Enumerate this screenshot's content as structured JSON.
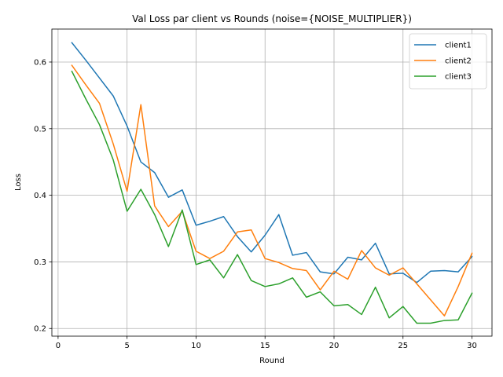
{
  "chart_data": {
    "type": "line",
    "title": "Val Loss par client vs Rounds (noise={NOISE_MULTIPLIER})",
    "xlabel": "Round",
    "ylabel": "Loss",
    "xlim": [
      -0.45,
      31.45
    ],
    "ylim": [
      0.1885,
      0.6495
    ],
    "xticks": [
      0,
      5,
      10,
      15,
      20,
      25,
      30
    ],
    "yticks": [
      0.2,
      0.3,
      0.4,
      0.5,
      0.6
    ],
    "ytick_labels": [
      "0.2",
      "0.3",
      "0.4",
      "0.5",
      "0.6"
    ],
    "grid": true,
    "legend_position": "top-right",
    "x": [
      1,
      2,
      3,
      4,
      5,
      6,
      7,
      8,
      9,
      10,
      11,
      12,
      13,
      14,
      15,
      16,
      17,
      18,
      19,
      20,
      21,
      22,
      23,
      24,
      25,
      26,
      27,
      28,
      29,
      30
    ],
    "series": [
      {
        "name": "client1",
        "color": "#1f77b4",
        "values": [
          0.629,
          0.603,
          0.576,
          0.549,
          0.504,
          0.45,
          0.434,
          0.397,
          0.408,
          0.355,
          0.361,
          0.368,
          0.338,
          0.315,
          0.34,
          0.371,
          0.31,
          0.314,
          0.285,
          0.282,
          0.307,
          0.303,
          0.328,
          0.282,
          0.283,
          0.269,
          0.286,
          0.287,
          0.285,
          0.308
        ]
      },
      {
        "name": "client2",
        "color": "#ff7f0e",
        "values": [
          0.595,
          0.566,
          0.538,
          0.477,
          0.406,
          0.536,
          0.384,
          0.353,
          0.376,
          0.316,
          0.305,
          0.316,
          0.345,
          0.348,
          0.305,
          0.299,
          0.29,
          0.287,
          0.258,
          0.286,
          0.274,
          0.317,
          0.291,
          0.28,
          0.291,
          0.267,
          0.243,
          0.219,
          0.263,
          0.313
        ]
      },
      {
        "name": "client3",
        "color": "#2ca02c",
        "values": [
          0.586,
          0.545,
          0.506,
          0.453,
          0.376,
          0.409,
          0.371,
          0.323,
          0.378,
          0.296,
          0.303,
          0.276,
          0.311,
          0.272,
          0.263,
          0.267,
          0.276,
          0.247,
          0.255,
          0.234,
          0.236,
          0.221,
          0.262,
          0.216,
          0.233,
          0.208,
          0.208,
          0.212,
          0.213,
          0.253
        ]
      }
    ]
  }
}
